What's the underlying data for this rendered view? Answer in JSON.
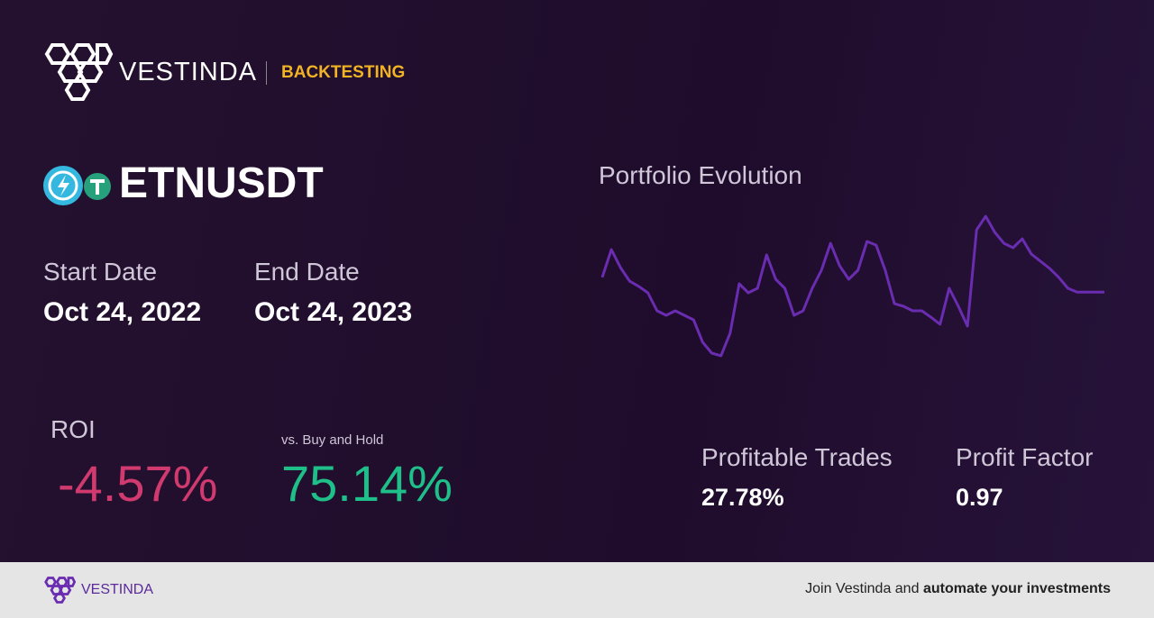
{
  "header": {
    "brand": "VESTINDA",
    "section": "BACKTESTING"
  },
  "pair": {
    "symbol": "ETNUSDT"
  },
  "dates": {
    "start_label": "Start Date",
    "start": "Oct 24, 2022",
    "end_label": "End Date",
    "end": "Oct 24, 2023"
  },
  "roi": {
    "label": "ROI",
    "value": "-4.57%",
    "compare_label": "vs. Buy and Hold",
    "compare_value": "75.14%"
  },
  "stats": {
    "profitable_label": "Profitable Trades",
    "profitable_value": "27.78%",
    "factor_label": "Profit Factor",
    "factor_value": "0.97"
  },
  "chart_data": {
    "type": "line",
    "title": "Portfolio Evolution",
    "color": "#6a2cb0",
    "values": [
      -0.7,
      6.7,
      1.9,
      -1.7,
      -3.1,
      -4.8,
      -9.6,
      -10.8,
      -9.6,
      -10.8,
      -12.0,
      -18.0,
      -20.9,
      -21.6,
      -15.6,
      -2.4,
      -4.8,
      -3.6,
      5.3,
      -1.2,
      -3.6,
      -10.8,
      -9.6,
      -3.6,
      1.2,
      8.4,
      2.4,
      -1.2,
      1.2,
      8.9,
      7.9,
      1.2,
      -7.7,
      -8.4,
      -9.6,
      -9.6,
      -11.3,
      -13.2,
      -3.6,
      -8.4,
      -13.7,
      12.0,
      15.6,
      11.3,
      8.4,
      7.2,
      9.6,
      5.5,
      3.6,
      1.7,
      -0.7,
      -3.6,
      -4.6,
      -4.6,
      -4.6,
      -4.6
    ],
    "ylim": [
      -23.3,
      16.1
    ]
  },
  "footer": {
    "brand": "VESTINDA",
    "text_plain": "Join Vestinda and",
    "text_bold": "automate your investments"
  }
}
